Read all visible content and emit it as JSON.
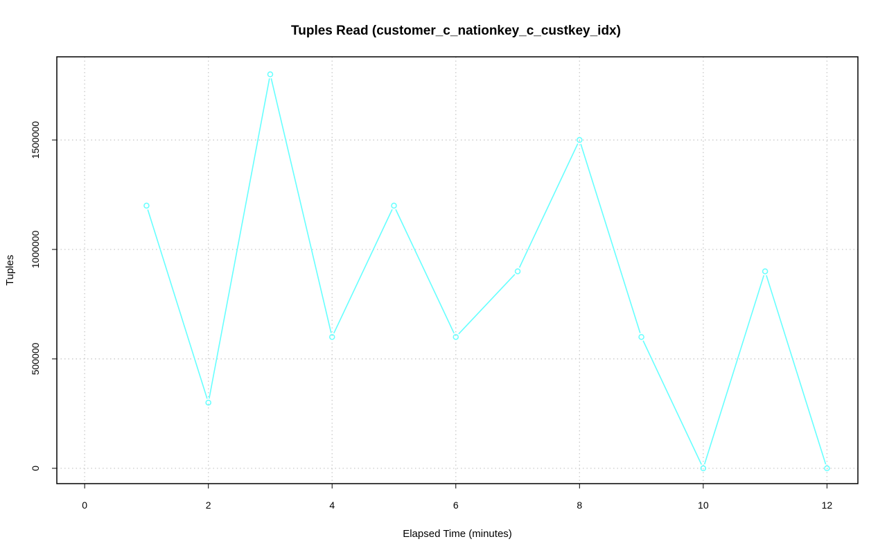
{
  "chart_data": {
    "type": "line",
    "title": "Tuples Read (customer_c_nationkey_c_custkey_idx)",
    "xlabel": "Elapsed Time (minutes)",
    "ylabel": "Tuples",
    "xlim": [
      -0.45,
      12.5
    ],
    "ylim": [
      -70000,
      1880000
    ],
    "x_ticks": [
      0,
      2,
      4,
      6,
      8,
      10,
      12
    ],
    "x_tick_labels": [
      "0",
      "2",
      "4",
      "6",
      "8",
      "10",
      "12"
    ],
    "y_ticks": [
      0,
      500000,
      1000000,
      1500000
    ],
    "y_tick_labels": [
      "0",
      "500000",
      "1000000",
      "1500000"
    ],
    "grid": true,
    "series": [
      {
        "color": "#66ffff",
        "x": [
          1,
          2,
          3,
          4,
          5,
          6,
          7,
          8,
          9,
          10,
          11,
          12
        ],
        "y": [
          1200000,
          300000,
          1800000,
          600000,
          1200000,
          600000,
          900000,
          1500000,
          600000,
          0,
          900000,
          0
        ]
      }
    ]
  }
}
